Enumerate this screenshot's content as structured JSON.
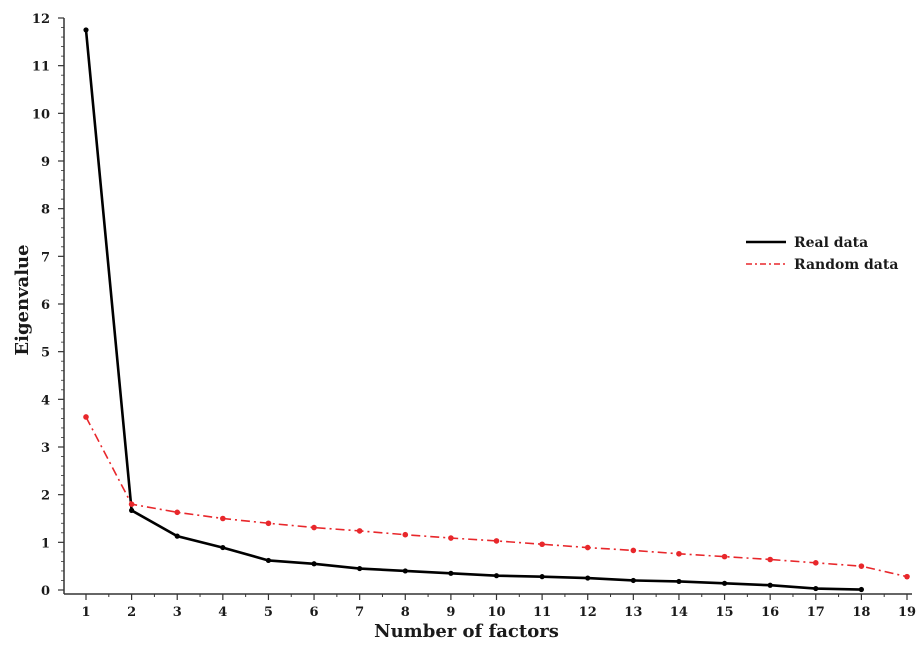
{
  "chart_data": {
    "type": "line",
    "title": "",
    "xlabel": "Number of factors",
    "ylabel": "Eigenvalue",
    "xlim": [
      1,
      19
    ],
    "ylim": [
      0,
      12
    ],
    "x_ticks": [
      1,
      2,
      3,
      4,
      5,
      6,
      7,
      8,
      9,
      10,
      11,
      12,
      13,
      14,
      15,
      16,
      17,
      18,
      19
    ],
    "y_ticks": [
      0,
      1,
      2,
      3,
      4,
      5,
      6,
      7,
      8,
      9,
      10,
      11,
      12
    ],
    "grid": false,
    "legend_position": "right",
    "series": [
      {
        "name": "Real data",
        "color": "#000000",
        "style": "solid",
        "x": [
          1,
          2,
          3,
          4,
          5,
          6,
          7,
          8,
          9,
          10,
          11,
          12,
          13,
          14,
          15,
          16,
          17,
          18
        ],
        "values": [
          11.75,
          1.67,
          1.13,
          0.89,
          0.62,
          0.55,
          0.45,
          0.4,
          0.35,
          0.3,
          0.28,
          0.25,
          0.2,
          0.18,
          0.14,
          0.1,
          0.03,
          0.01
        ]
      },
      {
        "name": "Random data",
        "color": "#e8272b",
        "style": "dash-dot",
        "x": [
          1,
          2,
          3,
          4,
          5,
          6,
          7,
          8,
          9,
          10,
          11,
          12,
          13,
          14,
          15,
          16,
          17,
          18,
          19
        ],
        "values": [
          3.63,
          1.8,
          1.63,
          1.5,
          1.4,
          1.31,
          1.24,
          1.16,
          1.09,
          1.03,
          0.96,
          0.89,
          0.83,
          0.76,
          0.7,
          0.64,
          0.57,
          0.5,
          0.28
        ]
      }
    ]
  }
}
